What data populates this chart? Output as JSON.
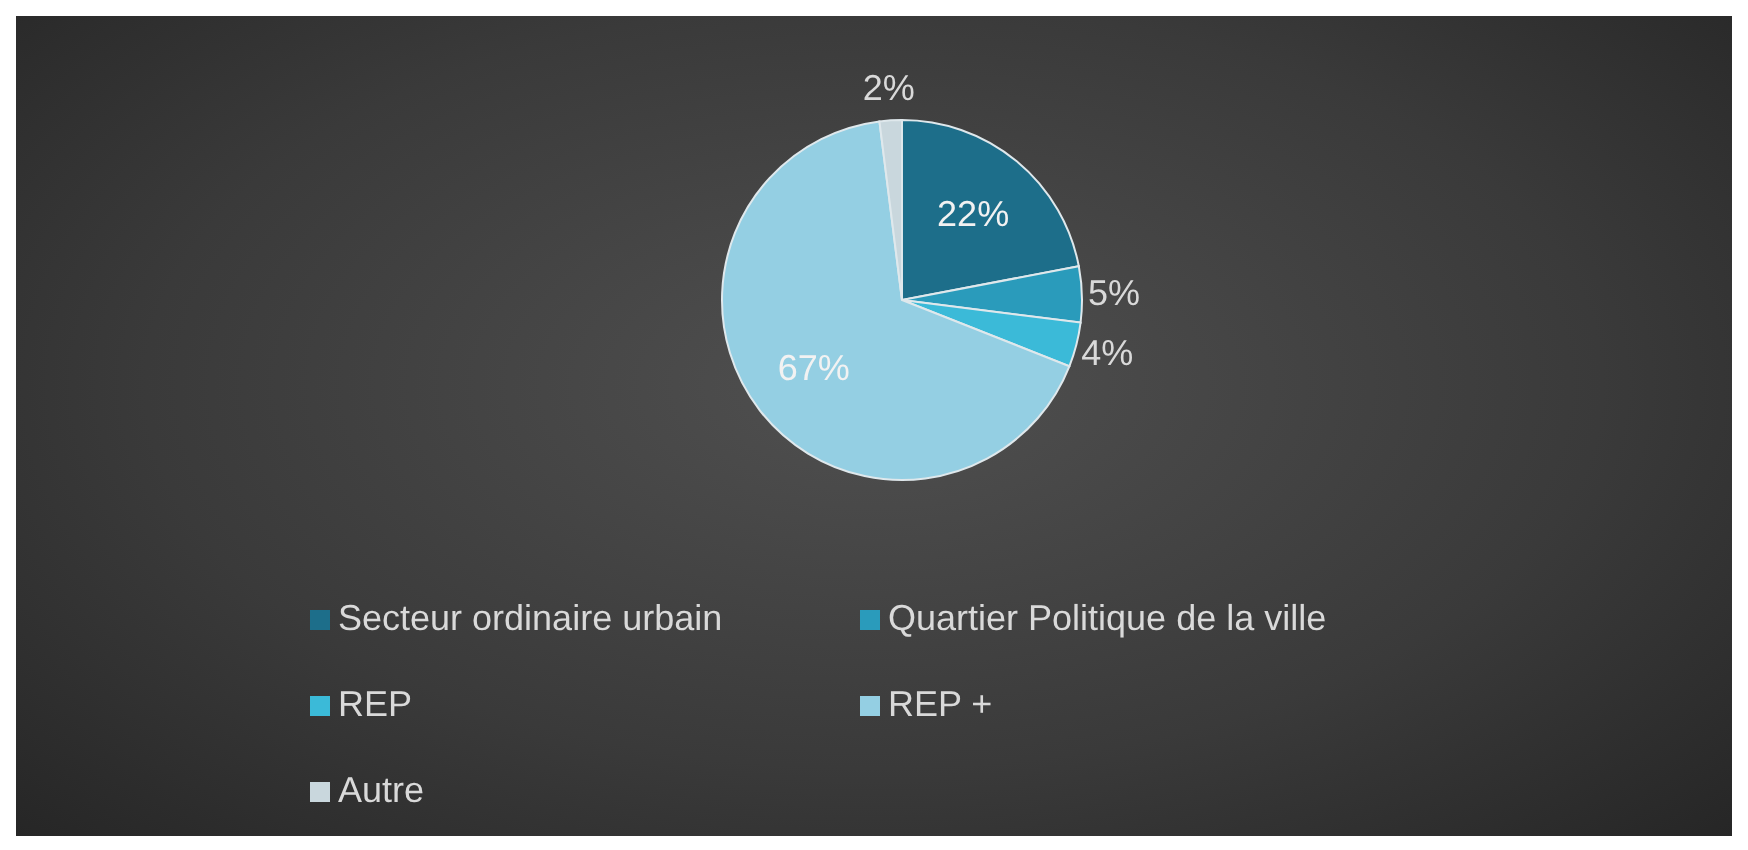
{
  "chart_data": {
    "type": "pie",
    "categories": [
      "Secteur ordinaire urbain",
      "Quartier Politique de la ville",
      "REP",
      "REP +",
      "Autre"
    ],
    "values": [
      22,
      5,
      4,
      67,
      2
    ],
    "value_labels": [
      "22%",
      "5%",
      "4%",
      "67%",
      "2%"
    ],
    "colors": [
      "#1d6e8a",
      "#2a9bbb",
      "#3bbad8",
      "#94cfe3",
      "#c9d7dd"
    ],
    "legend": "bottom"
  }
}
